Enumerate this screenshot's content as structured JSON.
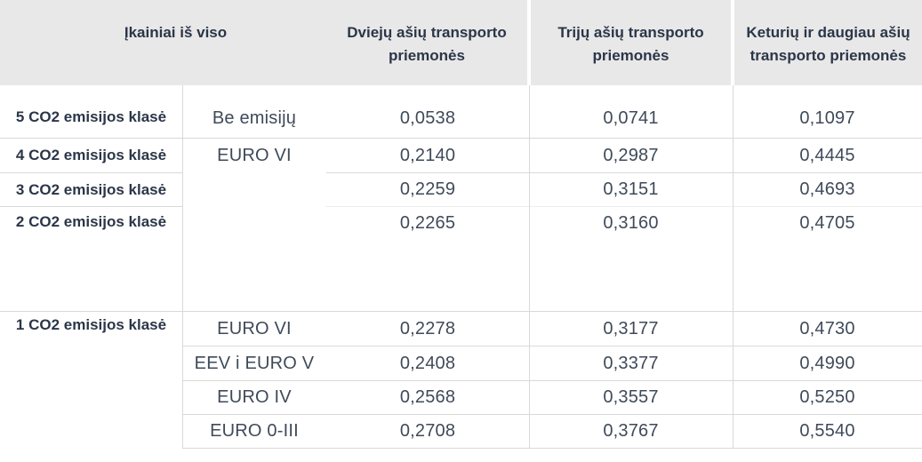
{
  "colors": {
    "header_background": "#e8e8e8",
    "heading_text": "#2b3648",
    "body_text": "#3f4a59",
    "grid_line": "#d9d9d9",
    "grid_line_light": "#ededed"
  },
  "header": {
    "total_label": "Įkainiai iš viso",
    "columns": [
      "Dviejų ašių transporto priemonės",
      "Trijų ašių transporto priemonės",
      "Keturių ir daugiau ašių transporto priemonės"
    ]
  },
  "table": {
    "rows": [
      {
        "co2_class": "5 CO2 emisijos klasė",
        "emission": "Be emisijų",
        "two_axle": "0,0538",
        "three_axle": "0,0741",
        "four_plus_axle": "0,1097"
      },
      {
        "co2_class": "4 CO2 emisijos klasė",
        "emission": "EURO VI",
        "two_axle": "0,2140",
        "three_axle": "0,2987",
        "four_plus_axle": "0,4445"
      },
      {
        "co2_class": "3 CO2 emisijos klasė",
        "two_axle": "0,2259",
        "three_axle": "0,3151",
        "four_plus_axle": "0,4693"
      },
      {
        "co2_class": "2 CO2 emisijos klasė",
        "two_axle": "0,2265",
        "three_axle": "0,3160",
        "four_plus_axle": "0,4705"
      },
      {
        "co2_class": "1 CO2 emisijos klasė",
        "emission": "EURO VI",
        "two_axle": "0,2278",
        "three_axle": "0,3177",
        "four_plus_axle": "0,4730"
      },
      {
        "emission": "EEV i EURO V",
        "two_axle": "0,2408",
        "three_axle": "0,3377",
        "four_plus_axle": "0,4990"
      },
      {
        "emission": "EURO IV",
        "two_axle": "0,2568",
        "three_axle": "0,3557",
        "four_plus_axle": "0,5250"
      },
      {
        "emission": "EURO 0-III",
        "two_axle": "0,2708",
        "three_axle": "0,3767",
        "four_plus_axle": "0,5540"
      }
    ]
  }
}
